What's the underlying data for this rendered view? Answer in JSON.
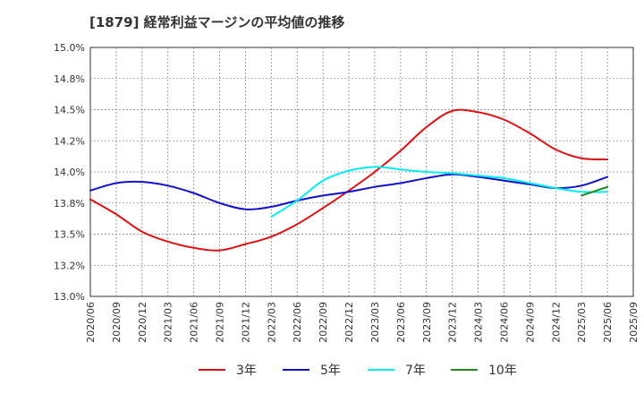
{
  "chart_data": {
    "type": "line",
    "title": "[1879]  経常利益マージンの平均値の推移",
    "xlabel": "",
    "ylabel": "",
    "ylim": [
      13.0,
      15.0
    ],
    "yticks": [
      "13.0%",
      "13.2%",
      "13.5%",
      "13.8%",
      "14.0%",
      "14.2%",
      "14.5%",
      "14.8%",
      "15.0%"
    ],
    "ytick_values": [
      13.0,
      13.25,
      13.5,
      13.75,
      14.0,
      14.25,
      14.5,
      14.75,
      15.0
    ],
    "categories": [
      "2020/06",
      "2020/09",
      "2020/12",
      "2021/03",
      "2021/06",
      "2021/09",
      "2021/12",
      "2022/03",
      "2022/06",
      "2022/09",
      "2022/12",
      "2023/03",
      "2023/06",
      "2023/09",
      "2023/12",
      "2024/03",
      "2024/06",
      "2024/09",
      "2024/12",
      "2025/03",
      "2025/06",
      "2025/09"
    ],
    "grid": true,
    "legend_position": "bottom",
    "series": [
      {
        "name": "3年",
        "color": "#dd1111",
        "values": [
          13.78,
          13.66,
          13.52,
          13.44,
          13.39,
          13.37,
          13.42,
          13.48,
          13.58,
          13.71,
          13.85,
          14.0,
          14.17,
          14.36,
          14.49,
          14.48,
          14.42,
          14.31,
          14.18,
          14.11,
          14.1,
          null
        ]
      },
      {
        "name": "5年",
        "color": "#1111cc",
        "values": [
          13.85,
          13.91,
          13.92,
          13.89,
          13.83,
          13.75,
          13.7,
          13.72,
          13.77,
          13.81,
          13.84,
          13.88,
          13.91,
          13.95,
          13.98,
          13.96,
          13.93,
          13.9,
          13.87,
          13.89,
          13.96,
          null
        ]
      },
      {
        "name": "7年",
        "color": "#00eeee",
        "values": [
          null,
          null,
          null,
          null,
          null,
          null,
          null,
          13.64,
          13.77,
          13.93,
          14.01,
          14.04,
          14.02,
          14.0,
          13.99,
          13.97,
          13.95,
          13.91,
          13.87,
          13.84,
          13.84,
          null
        ]
      },
      {
        "name": "10年",
        "color": "#228822",
        "values": [
          null,
          null,
          null,
          null,
          null,
          null,
          null,
          null,
          null,
          null,
          null,
          null,
          null,
          null,
          null,
          null,
          null,
          null,
          null,
          13.81,
          13.88,
          null
        ]
      }
    ]
  }
}
